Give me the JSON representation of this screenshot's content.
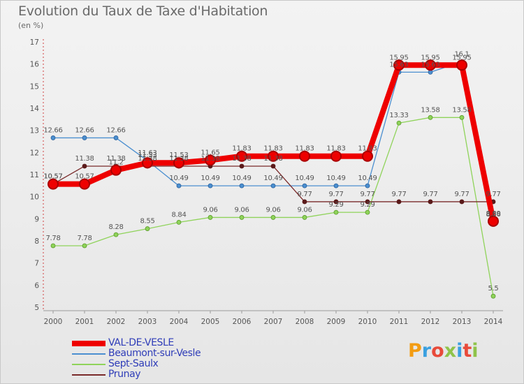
{
  "chart_data": {
    "type": "line",
    "title": "Evolution du Taux de Taxe d'Habitation",
    "subtitle": "(en %)",
    "xlabel": "",
    "ylabel": "",
    "ylim": [
      5,
      17
    ],
    "yticks": [
      5,
      6,
      7,
      8,
      9,
      10,
      11,
      12,
      13,
      14,
      15,
      16,
      17
    ],
    "categories": [
      "2000",
      "2001",
      "2002",
      "2003",
      "2004",
      "2005",
      "2006",
      "2007",
      "2008",
      "2009",
      "2010",
      "2011",
      "2012",
      "2013",
      "2014"
    ],
    "series": [
      {
        "name": "VAL-DE-VESLE",
        "color": "#ee0000",
        "values": [
          10.57,
          10.57,
          11.2,
          11.53,
          11.53,
          11.65,
          11.83,
          11.83,
          11.83,
          11.83,
          11.83,
          15.95,
          15.95,
          15.95,
          8.89
        ],
        "labels": [
          "10.57",
          "10.57",
          "11.2",
          "11.53",
          "11.53",
          "11.65",
          "11.83",
          "11.83",
          "11.83",
          "11.83",
          "11.83",
          "15.95",
          "15.95",
          "15.95",
          "8.89"
        ]
      },
      {
        "name": "Beaumont-sur-Vesle",
        "color": "#4b8fd0",
        "values": [
          12.66,
          12.66,
          12.66,
          11.63,
          10.49,
          10.49,
          10.49,
          10.49,
          10.49,
          10.49,
          10.49,
          15.63,
          15.63,
          16.1,
          8.86
        ],
        "labels": [
          "12.66",
          "12.66",
          "12.66",
          "11.63",
          "10.49",
          "10.49",
          "10.49",
          "10.49",
          "10.49",
          "10.49",
          "10.49",
          "15.63",
          "15.63",
          "16.1",
          "8.86"
        ]
      },
      {
        "name": "Sept-Saulx",
        "color": "#8fd35a",
        "values": [
          7.78,
          7.78,
          8.28,
          8.55,
          8.84,
          9.06,
          9.06,
          9.06,
          9.06,
          9.29,
          9.29,
          13.33,
          13.58,
          13.58,
          5.5
        ],
        "labels": [
          "7.78",
          "7.78",
          "8.28",
          "8.55",
          "8.84",
          "9.06",
          "9.06",
          "9.06",
          "9.06",
          "9.29",
          "9.29",
          "13.33",
          "13.58",
          "13.58",
          "5.5"
        ]
      },
      {
        "name": "Prunay",
        "color": "#7a2a2a",
        "values": [
          10.57,
          11.38,
          11.38,
          11.38,
          11.38,
          11.38,
          11.38,
          11.38,
          9.77,
          9.77,
          9.77,
          9.77,
          9.77,
          9.77,
          9.77
        ],
        "labels": [
          "10.57",
          "11.38",
          "11.38",
          "11.38",
          "11.38",
          "11.38",
          "11.38",
          "11.38",
          "9.77",
          "9.77",
          "9.77",
          "9.77",
          "9.77",
          "9.77",
          "9.77"
        ]
      }
    ],
    "legend_position": "bottom-left"
  },
  "logo": {
    "text": "Proxiti",
    "colors": [
      "#f39c12",
      "#3aa0e0",
      "#e84a3a",
      "#8fc34a",
      "#3aa0e0",
      "#e84a3a",
      "#8fc34a"
    ]
  }
}
